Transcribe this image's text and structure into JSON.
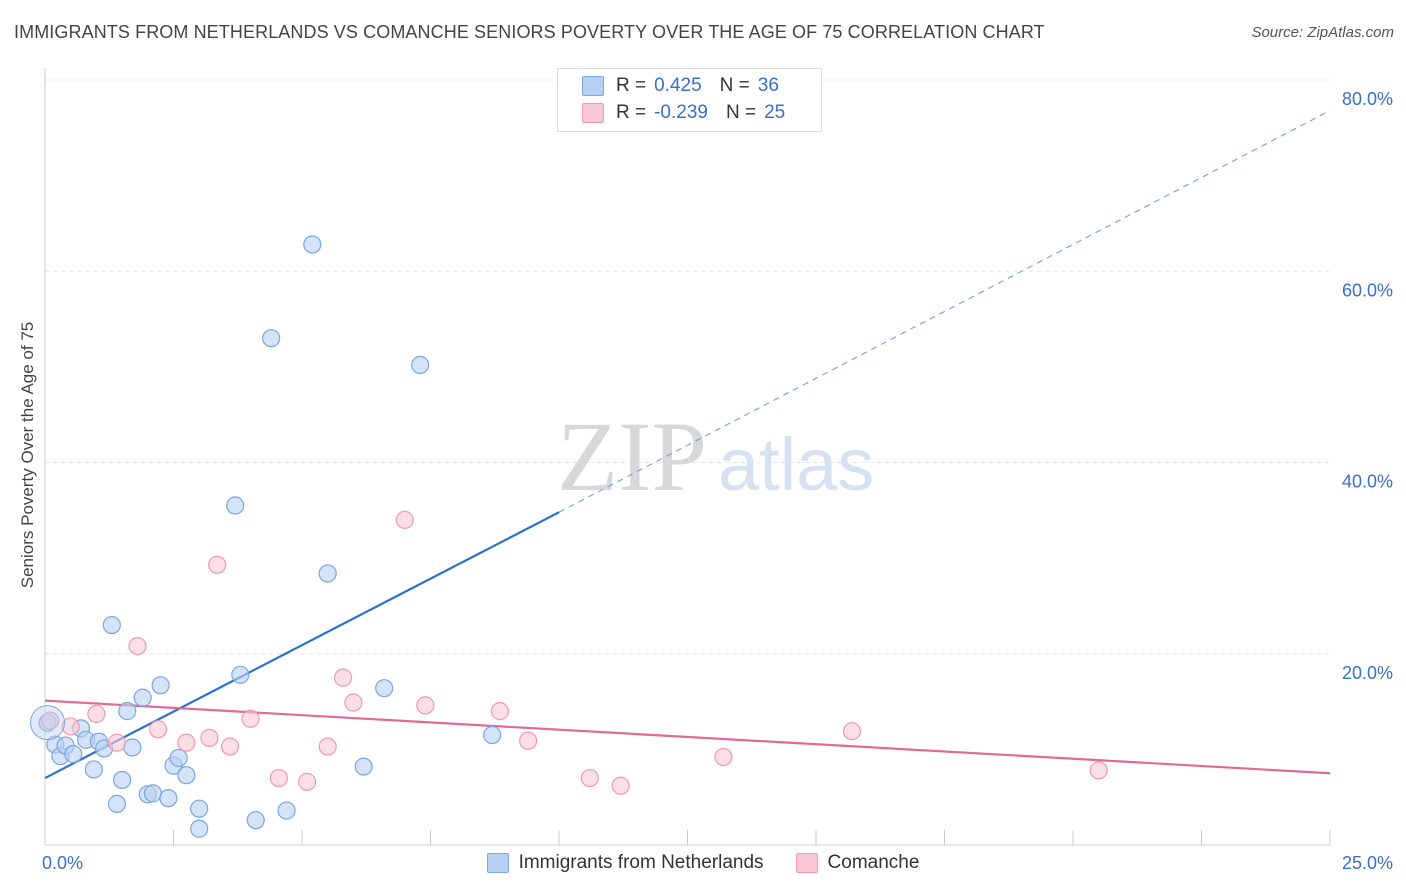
{
  "title": "IMMIGRANTS FROM NETHERLANDS VS COMANCHE SENIORS POVERTY OVER THE AGE OF 75 CORRELATION CHART",
  "source": "Source: ZipAtlas.com",
  "watermark": {
    "zip": "ZIP",
    "atlas": "atlas"
  },
  "legend": {
    "rows": [
      {
        "r_label": "R =",
        "r_value": "0.425",
        "n_label": "N =",
        "n_value": "36"
      },
      {
        "r_label": "R =",
        "r_value": "-0.239",
        "n_label": "N =",
        "n_value": "25"
      }
    ]
  },
  "colors": {
    "blue_fill": "#b7d0f4",
    "blue_stroke": "#7aa6e0",
    "blue_line": "#2a72d0",
    "pink_fill": "#f8c8d6",
    "pink_stroke": "#ee98b2",
    "pink_line": "#e06a94",
    "grid": "#e6e6e6",
    "tick_label": "#3a6fc8"
  },
  "chart_data": {
    "type": "scatter",
    "title": "IMMIGRANTS FROM NETHERLANDS VS COMANCHE SENIORS POVERTY OVER THE AGE OF 75 CORRELATION CHART",
    "xlabel": "",
    "ylabel": "Seniors Poverty Over the Age of 75",
    "xlim": [
      0,
      25
    ],
    "ylim": [
      0,
      80
    ],
    "x_tick_labels": [
      "0.0%",
      "25.0%"
    ],
    "y_ticks": [
      20,
      40,
      60,
      80
    ],
    "y_tick_labels": [
      "20.0%",
      "40.0%",
      "60.0%",
      "80.0%"
    ],
    "grid": true,
    "series": [
      {
        "name": "Immigrants from Netherlands",
        "color": "blue",
        "points": [
          [
            0.05,
            12.8
          ],
          [
            0.2,
            10.5
          ],
          [
            0.3,
            9.3
          ],
          [
            0.4,
            10.4
          ],
          [
            0.55,
            9.5
          ],
          [
            0.7,
            12.2
          ],
          [
            0.8,
            11.0
          ],
          [
            0.95,
            7.9
          ],
          [
            1.05,
            10.8
          ],
          [
            1.15,
            10.1
          ],
          [
            1.3,
            23.0
          ],
          [
            1.4,
            4.3
          ],
          [
            1.5,
            6.8
          ],
          [
            1.6,
            14.0
          ],
          [
            1.7,
            10.2
          ],
          [
            1.9,
            15.4
          ],
          [
            2.0,
            5.3
          ],
          [
            2.1,
            5.4
          ],
          [
            2.25,
            16.7
          ],
          [
            2.4,
            4.9
          ],
          [
            2.5,
            8.3
          ],
          [
            2.6,
            9.1
          ],
          [
            2.75,
            7.3
          ],
          [
            3.0,
            3.8
          ],
          [
            3.0,
            1.7
          ],
          [
            3.7,
            35.5
          ],
          [
            3.8,
            17.8
          ],
          [
            4.1,
            2.6
          ],
          [
            4.4,
            53.0
          ],
          [
            4.7,
            3.6
          ],
          [
            5.2,
            62.8
          ],
          [
            5.5,
            28.4
          ],
          [
            6.2,
            8.2
          ],
          [
            6.6,
            16.4
          ],
          [
            7.3,
            50.2
          ],
          [
            8.7,
            11.5
          ]
        ],
        "trend_solid": [
          [
            0,
            7.0
          ],
          [
            10.0,
            34.8
          ]
        ],
        "trend_dashed": [
          [
            10.0,
            34.8
          ],
          [
            25.0,
            76.8
          ]
        ]
      },
      {
        "name": "Comanche",
        "color": "pink",
        "points": [
          [
            0.1,
            13.0
          ],
          [
            0.5,
            12.4
          ],
          [
            1.0,
            13.7
          ],
          [
            1.4,
            10.7
          ],
          [
            1.8,
            20.8
          ],
          [
            2.2,
            12.1
          ],
          [
            2.75,
            10.7
          ],
          [
            3.2,
            11.2
          ],
          [
            3.35,
            29.3
          ],
          [
            3.6,
            10.3
          ],
          [
            4.0,
            13.2
          ],
          [
            4.55,
            7.0
          ],
          [
            5.1,
            6.6
          ],
          [
            5.5,
            10.3
          ],
          [
            5.8,
            17.5
          ],
          [
            6.0,
            14.9
          ],
          [
            7.0,
            34.0
          ],
          [
            7.4,
            14.6
          ],
          [
            8.85,
            14.0
          ],
          [
            9.4,
            10.9
          ],
          [
            10.6,
            7.0
          ],
          [
            11.2,
            6.2
          ],
          [
            13.2,
            9.2
          ],
          [
            15.7,
            11.9
          ],
          [
            20.5,
            7.8
          ]
        ],
        "trend_solid": [
          [
            0,
            15.1
          ],
          [
            25.0,
            7.5
          ]
        ]
      }
    ]
  },
  "bottom_legend": [
    {
      "label": "Immigrants from Netherlands"
    },
    {
      "label": "Comanche"
    }
  ]
}
